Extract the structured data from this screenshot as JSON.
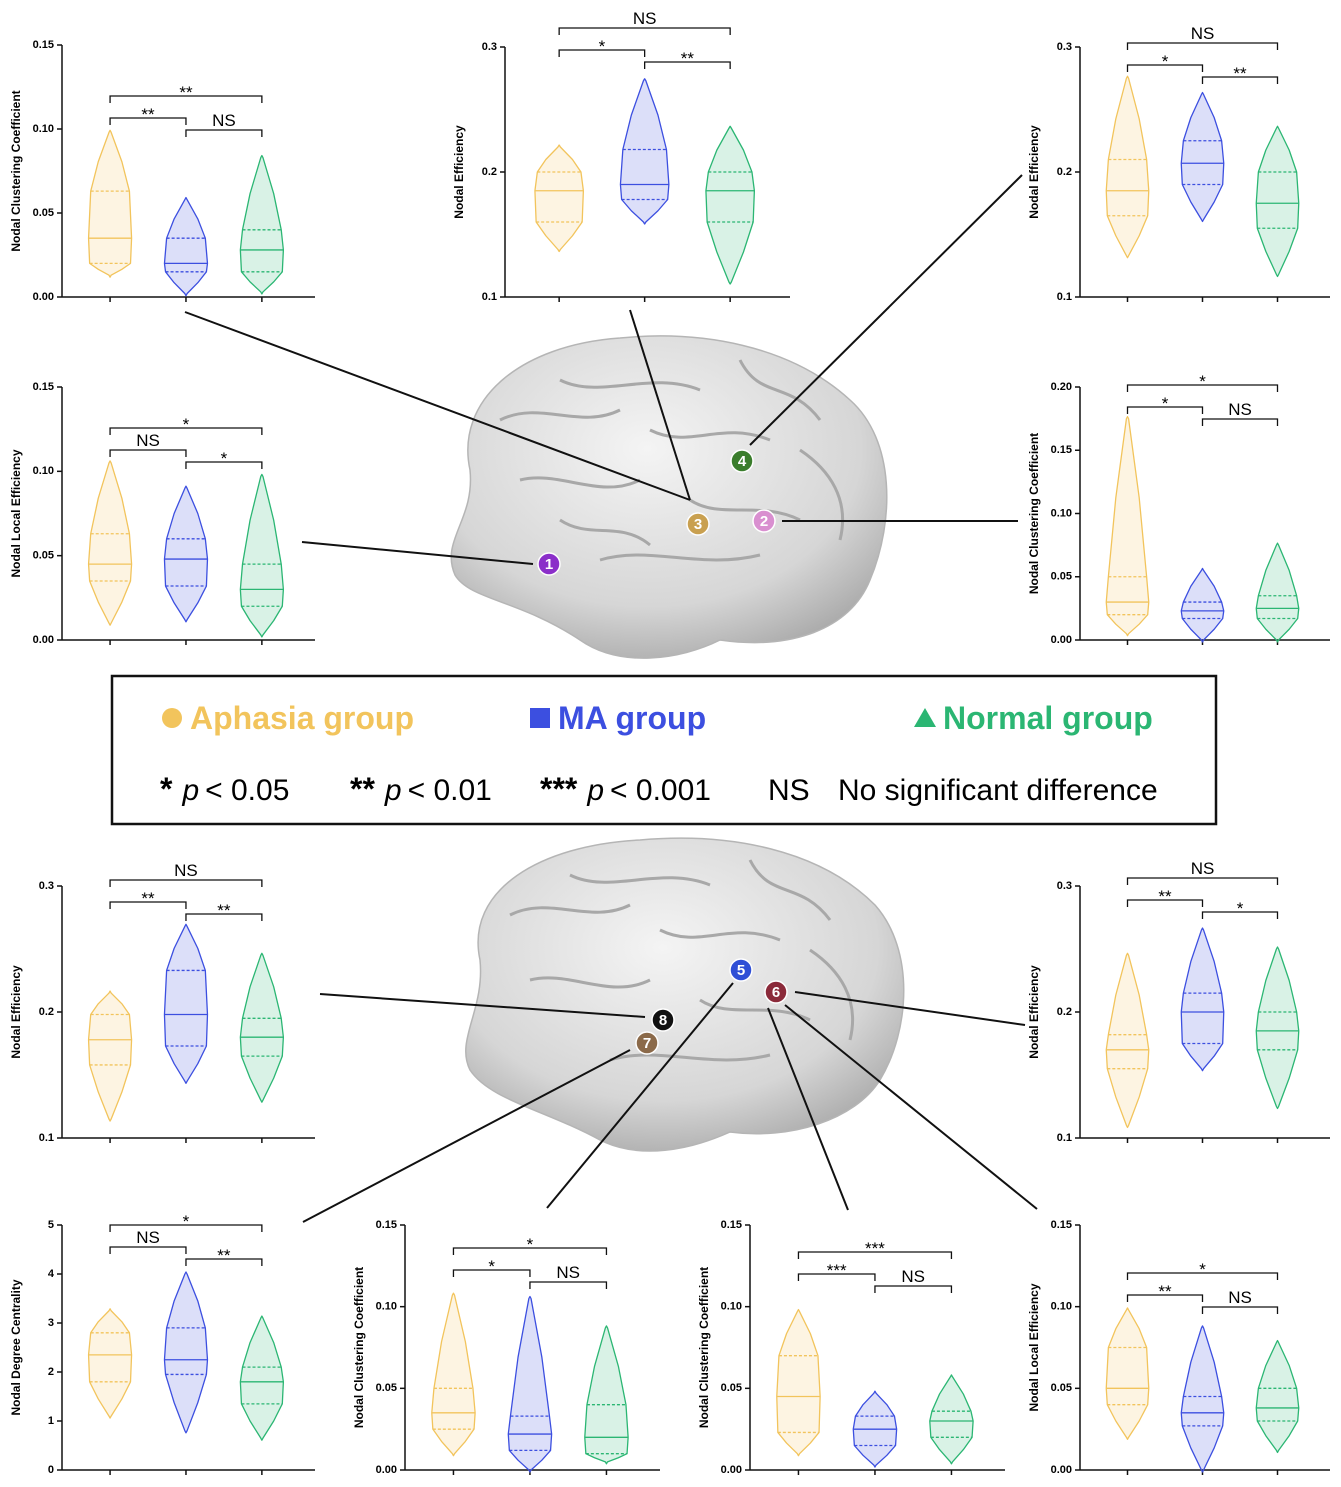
{
  "legend": {
    "groups": [
      {
        "name": "Aphasia group",
        "color": "#f2c45c"
      },
      {
        "name": "MA group",
        "color": "#3c4fe0"
      },
      {
        "name": "Normal group",
        "color": "#2bb673"
      }
    ],
    "keys": [
      {
        "symbol": "*",
        "stat": "p",
        "threshold": "< 0.05"
      },
      {
        "symbol": "**",
        "stat": "p",
        "threshold": "< 0.01"
      },
      {
        "symbol": "***",
        "stat": "p",
        "threshold": "< 0.001"
      }
    ],
    "ns": {
      "symbol": "NS",
      "text": "No significant difference"
    }
  },
  "markers": [
    {
      "label": "1",
      "color": "#8b2fc9"
    },
    {
      "label": "2",
      "color": "#d98fd0"
    },
    {
      "label": "3",
      "color": "#c9a050"
    },
    {
      "label": "4",
      "color": "#3a7d2c"
    },
    {
      "label": "5",
      "color": "#2f4fd6"
    },
    {
      "label": "6",
      "color": "#8b2a3a"
    },
    {
      "label": "7",
      "color": "#8b6a4a"
    },
    {
      "label": "8",
      "color": "#111111"
    }
  ],
  "chart_data": [
    {
      "type": "violin",
      "ylabel": "Nodal Clustering Coefficient",
      "ylim": [
        0,
        0.15
      ],
      "yticks": [
        {
          "value": 0,
          "label": "0.00"
        },
        {
          "value": 0.05,
          "label": "0.05"
        },
        {
          "value": 0.1,
          "label": "0.10"
        },
        {
          "value": 0.15,
          "label": "0.15"
        }
      ],
      "series": [
        {
          "min": 0.013,
          "q1": 0.02,
          "median": 0.035,
          "q3": 0.063,
          "max": 0.098
        },
        {
          "min": 0.002,
          "q1": 0.015,
          "median": 0.02,
          "q3": 0.035,
          "max": 0.058
        },
        {
          "min": 0.003,
          "q1": 0.015,
          "median": 0.028,
          "q3": 0.04,
          "max": 0.083
        }
      ],
      "significance": [
        "**",
        "NS",
        "**"
      ]
    },
    {
      "type": "violin",
      "ylabel": "Nodal Efficiency",
      "ylim": [
        0.1,
        0.3
      ],
      "yticks": [
        0.1,
        0.2,
        0.3
      ],
      "series": [
        {
          "min": 0.138,
          "q1": 0.16,
          "median": 0.185,
          "q3": 0.2,
          "max": 0.22
        },
        {
          "min": 0.16,
          "q1": 0.178,
          "median": 0.19,
          "q3": 0.218,
          "max": 0.273
        },
        {
          "min": 0.112,
          "q1": 0.16,
          "median": 0.185,
          "q3": 0.2,
          "max": 0.235
        }
      ],
      "significance": [
        "*",
        "**",
        "NS"
      ]
    },
    {
      "type": "violin",
      "ylabel": "Nodal Efficiency",
      "ylim": [
        0.1,
        0.3
      ],
      "yticks": [
        0.1,
        0.2,
        0.3
      ],
      "series": [
        {
          "min": 0.133,
          "q1": 0.165,
          "median": 0.185,
          "q3": 0.21,
          "max": 0.275
        },
        {
          "min": 0.162,
          "q1": 0.19,
          "median": 0.207,
          "q3": 0.225,
          "max": 0.262
        },
        {
          "min": 0.118,
          "q1": 0.155,
          "median": 0.175,
          "q3": 0.2,
          "max": 0.235
        }
      ],
      "significance": [
        "*",
        "**",
        "NS"
      ]
    },
    {
      "type": "violin",
      "ylabel": "Nodal Local Efficiency",
      "ylim": [
        0,
        0.15
      ],
      "yticks": [
        {
          "value": 0,
          "label": "0.00"
        },
        {
          "value": 0.05,
          "label": "0.05"
        },
        {
          "value": 0.1,
          "label": "0.10"
        },
        {
          "value": 0.15,
          "label": "0.15"
        }
      ],
      "series": [
        {
          "min": 0.01,
          "q1": 0.035,
          "median": 0.045,
          "q3": 0.063,
          "max": 0.105
        },
        {
          "min": 0.012,
          "q1": 0.032,
          "median": 0.048,
          "q3": 0.06,
          "max": 0.09
        },
        {
          "min": 0.003,
          "q1": 0.02,
          "median": 0.03,
          "q3": 0.045,
          "max": 0.097
        }
      ],
      "significance": [
        "NS",
        "*",
        "*"
      ]
    },
    {
      "type": "violin",
      "ylabel": "Nodal Clustering Coefficient",
      "ylim": [
        0,
        0.2
      ],
      "yticks": [
        {
          "value": 0,
          "label": "0.00"
        },
        {
          "value": 0.05,
          "label": "0.05"
        },
        {
          "value": 0.1,
          "label": "0.10"
        },
        {
          "value": 0.15,
          "label": "0.15"
        },
        {
          "value": 0.2,
          "label": "0.20"
        }
      ],
      "series": [
        {
          "min": 0.005,
          "q1": 0.02,
          "median": 0.03,
          "q3": 0.05,
          "max": 0.175
        },
        {
          "min": 0,
          "q1": 0.017,
          "median": 0.023,
          "q3": 0.03,
          "max": 0.055
        },
        {
          "min": 0,
          "q1": 0.017,
          "median": 0.025,
          "q3": 0.035,
          "max": 0.075
        }
      ],
      "significance": [
        "*",
        "NS",
        "*"
      ]
    },
    {
      "type": "violin",
      "ylabel": "Nodal Efficiency",
      "ylim": [
        0.1,
        0.3
      ],
      "yticks": [
        0.1,
        0.2,
        0.3
      ],
      "series": [
        {
          "min": 0.115,
          "q1": 0.158,
          "median": 0.178,
          "q3": 0.198,
          "max": 0.215
        },
        {
          "min": 0.145,
          "q1": 0.173,
          "median": 0.198,
          "q3": 0.233,
          "max": 0.268
        },
        {
          "min": 0.13,
          "q1": 0.165,
          "median": 0.18,
          "q3": 0.195,
          "max": 0.245
        }
      ],
      "significance": [
        "**",
        "**",
        "NS"
      ]
    },
    {
      "type": "violin",
      "ylabel": "Nodal Efficiency",
      "ylim": [
        0.1,
        0.3
      ],
      "yticks": [
        0.1,
        0.2,
        0.3
      ],
      "series": [
        {
          "min": 0.11,
          "q1": 0.155,
          "median": 0.17,
          "q3": 0.182,
          "max": 0.245
        },
        {
          "min": 0.155,
          "q1": 0.175,
          "median": 0.2,
          "q3": 0.215,
          "max": 0.265
        },
        {
          "min": 0.125,
          "q1": 0.17,
          "median": 0.185,
          "q3": 0.2,
          "max": 0.25
        }
      ],
      "significance": [
        "**",
        "*",
        "NS"
      ]
    },
    {
      "type": "violin",
      "ylabel": "Nodal Degree Centrality",
      "ylim": [
        0,
        5
      ],
      "yticks": [
        0,
        1,
        2,
        3,
        4,
        5
      ],
      "series": [
        {
          "min": 1.1,
          "q1": 1.8,
          "median": 2.35,
          "q3": 2.8,
          "max": 3.25
        },
        {
          "min": 0.8,
          "q1": 1.95,
          "median": 2.25,
          "q3": 2.9,
          "max": 4.0
        },
        {
          "min": 0.65,
          "q1": 1.35,
          "median": 1.8,
          "q3": 2.1,
          "max": 3.1
        }
      ],
      "significance": [
        "NS",
        "**",
        "*"
      ]
    },
    {
      "type": "violin",
      "ylabel": "Nodal Clustering Coefficient",
      "ylim": [
        0,
        0.15
      ],
      "yticks": [
        {
          "value": 0,
          "label": "0.00"
        },
        {
          "value": 0.05,
          "label": "0.05"
        },
        {
          "value": 0.1,
          "label": "0.10"
        },
        {
          "value": 0.15,
          "label": "0.15"
        }
      ],
      "series": [
        {
          "min": 0.01,
          "q1": 0.025,
          "median": 0.035,
          "q3": 0.05,
          "max": 0.107
        },
        {
          "min": 0,
          "q1": 0.012,
          "median": 0.022,
          "q3": 0.033,
          "max": 0.105
        },
        {
          "min": 0.005,
          "q1": 0.01,
          "median": 0.02,
          "q3": 0.04,
          "max": 0.087
        }
      ],
      "significance": [
        "*",
        "NS",
        "*"
      ]
    },
    {
      "type": "violin",
      "ylabel": "Nodal Clustering Coefficient",
      "ylim": [
        0,
        0.15
      ],
      "yticks": [
        {
          "value": 0,
          "label": "0.00"
        },
        {
          "value": 0.05,
          "label": "0.05"
        },
        {
          "value": 0.1,
          "label": "0.10"
        },
        {
          "value": 0.15,
          "label": "0.15"
        }
      ],
      "series": [
        {
          "min": 0.01,
          "q1": 0.023,
          "median": 0.045,
          "q3": 0.07,
          "max": 0.097
        },
        {
          "min": 0.003,
          "q1": 0.015,
          "median": 0.025,
          "q3": 0.033,
          "max": 0.047
        },
        {
          "min": 0.005,
          "q1": 0.02,
          "median": 0.03,
          "q3": 0.036,
          "max": 0.057
        }
      ],
      "significance": [
        "***",
        "NS",
        "***"
      ]
    },
    {
      "type": "violin",
      "ylabel": "Nodal Local Efficiency",
      "ylim": [
        0,
        0.15
      ],
      "yticks": [
        {
          "value": 0,
          "label": "0.00"
        },
        {
          "value": 0.05,
          "label": "0.05"
        },
        {
          "value": 0.1,
          "label": "0.10"
        },
        {
          "value": 0.15,
          "label": "0.15"
        }
      ],
      "series": [
        {
          "min": 0.02,
          "q1": 0.04,
          "median": 0.05,
          "q3": 0.075,
          "max": 0.098
        },
        {
          "min": 0,
          "q1": 0.027,
          "median": 0.035,
          "q3": 0.045,
          "max": 0.087
        },
        {
          "min": 0.012,
          "q1": 0.03,
          "median": 0.038,
          "q3": 0.05,
          "max": 0.078
        }
      ],
      "significance": [
        "**",
        "NS",
        "*"
      ]
    }
  ]
}
